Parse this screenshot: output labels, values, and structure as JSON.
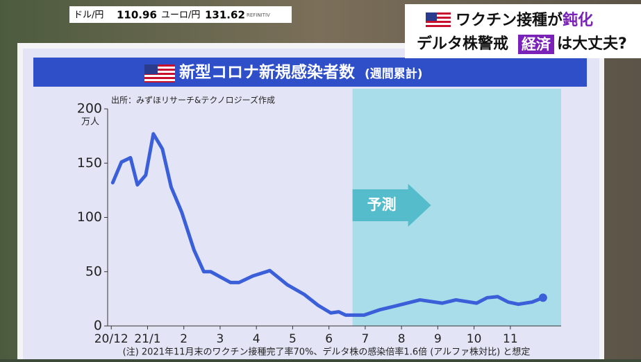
{
  "ticker": {
    "items": [
      {
        "label": "ドル/円",
        "value": "110.96"
      },
      {
        "label": "ユーロ/円",
        "value": "131.62"
      }
    ],
    "source": "REFINITIV"
  },
  "headline": {
    "line1": "ワクチン接種が",
    "line1_highlight": "鈍化",
    "line2": "デルタ株警戒",
    "line2_box": "経済",
    "line2_end": "は大丈夫?"
  },
  "chart_data": {
    "type": "line",
    "title": "新型コロナ新規感染者数",
    "title_note": "(週間累計)",
    "source": "出所：みずほリサーチ&テクノロジーズ作成",
    "y_unit": "万人",
    "forecast_label": "予測",
    "note": "(注) 2021年11月末のワクチン接種完了率70%、デルタ株の感染倍率1.6倍 (アルファ株対比) と想定",
    "x": [
      0.04,
      0.28,
      0.53,
      0.72,
      0.95,
      1.16,
      1.41,
      1.65,
      1.94,
      2.28,
      2.55,
      2.74,
      3.29,
      3.52,
      3.9,
      4.37,
      4.85,
      5.32,
      5.7,
      6.05,
      6.27,
      6.46,
      6.97,
      7.41,
      7.79,
      8.51,
      9.12,
      9.5,
      10.07,
      10.36,
      10.65,
      10.94,
      11.22,
      11.6,
      11.9
    ],
    "series": [
      {
        "name": "新規感染者数",
        "color": "#3a5fd8",
        "values": [
          132,
          151,
          155,
          130,
          139,
          177,
          163,
          128,
          105,
          70,
          50,
          50,
          40,
          40,
          46,
          51,
          38,
          29,
          19,
          12,
          13,
          10,
          10,
          15,
          18,
          24,
          21,
          24,
          21,
          26,
          27,
          22,
          20,
          22,
          26
        ]
      }
    ],
    "forecast_region": [
      6.65,
      12.4
    ],
    "xlim": [
      -0.1,
      12.4
    ],
    "xticks": [
      {
        "value": 0,
        "label": "20/12"
      },
      {
        "value": 1,
        "label": "21/1"
      },
      2,
      3,
      4,
      5,
      6,
      7,
      8,
      9,
      10,
      11
    ],
    "ylim": [
      0,
      200
    ],
    "yticks": [
      0,
      50,
      100,
      150,
      200
    ]
  }
}
